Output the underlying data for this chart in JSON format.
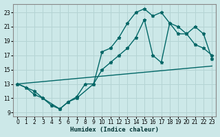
{
  "xlabel": "Humidex (Indice chaleur)",
  "bg_color": "#cce8e8",
  "grid_color": "#b0d8d8",
  "line_color": "#006666",
  "xlim": [
    -0.5,
    23.5
  ],
  "ylim": [
    8.5,
    24.2
  ],
  "xticks": [
    0,
    1,
    2,
    3,
    4,
    5,
    6,
    7,
    8,
    9,
    10,
    11,
    12,
    13,
    14,
    15,
    16,
    17,
    18,
    19,
    20,
    21,
    22,
    23
  ],
  "yticks": [
    9,
    11,
    13,
    15,
    17,
    19,
    21,
    23
  ],
  "line1_x": [
    0,
    1,
    2,
    3,
    4,
    5,
    6,
    7,
    8,
    9,
    10,
    11,
    12,
    13,
    14,
    15,
    16,
    17,
    18,
    19,
    20,
    21,
    22,
    23
  ],
  "line1_y": [
    13,
    12.5,
    11.5,
    11,
    10,
    9.5,
    10.5,
    11.2,
    13,
    13,
    17.5,
    18,
    19.5,
    21.5,
    23,
    23.5,
    22.5,
    23,
    21.5,
    21,
    20,
    18.5,
    18,
    17
  ],
  "line2_x": [
    0,
    2,
    3,
    5,
    6,
    7,
    9,
    10,
    11,
    12,
    13,
    14,
    15,
    16,
    17,
    18,
    19,
    20,
    21,
    22,
    23
  ],
  "line2_y": [
    13,
    12,
    11,
    9.5,
    10.5,
    11,
    13,
    15,
    16,
    17,
    18,
    19.5,
    22,
    17,
    16,
    21.5,
    20,
    20,
    21,
    20,
    16.5
  ],
  "line3_x": [
    0,
    23
  ],
  "line3_y": [
    13,
    15.5
  ]
}
